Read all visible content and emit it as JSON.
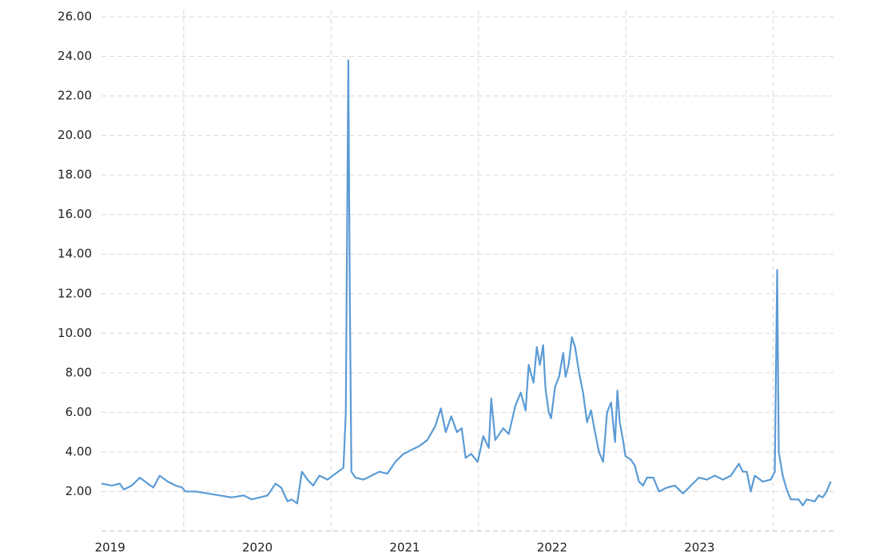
{
  "chart_data": {
    "type": "line",
    "x": [
      2019.442,
      2019.512,
      2019.566,
      2019.593,
      2019.648,
      2019.702,
      2019.756,
      2019.794,
      2019.837,
      2019.892,
      2019.946,
      2019.989,
      2020.011,
      2020.081,
      2020.163,
      2020.244,
      2020.325,
      2020.407,
      2020.461,
      2020.515,
      2020.569,
      2020.623,
      2020.661,
      2020.705,
      2020.732,
      2020.77,
      2020.802,
      2020.84,
      2020.878,
      2020.921,
      2020.976,
      2021.03,
      2021.084,
      2021.1,
      2021.117,
      2021.127,
      2021.138,
      2021.165,
      2021.22,
      2021.274,
      2021.328,
      2021.382,
      2021.436,
      2021.491,
      2021.545,
      2021.599,
      2021.653,
      2021.707,
      2021.745,
      2021.778,
      2021.816,
      2021.854,
      2021.886,
      2021.913,
      2021.951,
      2021.995,
      2022.033,
      2022.07,
      2022.087,
      2022.114,
      2022.168,
      2022.206,
      2022.249,
      2022.287,
      2022.32,
      2022.341,
      2022.374,
      2022.396,
      2022.417,
      2022.439,
      2022.455,
      2022.477,
      2022.493,
      2022.52,
      2022.547,
      2022.575,
      2022.591,
      2022.612,
      2022.634,
      2022.656,
      2022.683,
      2022.71,
      2022.737,
      2022.764,
      2022.791,
      2022.818,
      2022.846,
      2022.873,
      2022.9,
      2022.927,
      2022.943,
      2022.959,
      2022.981,
      2022.997,
      2023.035,
      2023.062,
      2023.089,
      2023.117,
      2023.144,
      2023.187,
      2023.225,
      2023.279,
      2023.333,
      2023.388,
      2023.442,
      2023.496,
      2023.55,
      2023.604,
      2023.659,
      2023.713,
      2023.767,
      2023.794,
      2023.821,
      2023.848,
      2023.875,
      2023.93,
      2023.984,
      2024.011,
      2024.027,
      2024.038,
      2024.065,
      2024.092,
      2024.119,
      2024.173,
      2024.201,
      2024.228,
      2024.282,
      2024.309,
      2024.336,
      2024.363,
      2024.39
    ],
    "series": [
      {
        "color": "#5b9bd5",
        "values": [
          2.4,
          2.3,
          2.4,
          2.1,
          2.3,
          2.7,
          2.4,
          2.2,
          2.8,
          2.5,
          2.3,
          2.2,
          2.0,
          2.0,
          1.9,
          1.8,
          1.7,
          1.8,
          1.6,
          1.7,
          1.8,
          2.4,
          2.2,
          1.5,
          1.6,
          1.4,
          3.0,
          2.6,
          2.3,
          2.8,
          2.6,
          2.9,
          3.2,
          6.0,
          23.8,
          12,
          3.0,
          2.7,
          2.6,
          2.8,
          3.0,
          2.9,
          3.5,
          3.9,
          4.1,
          4.3,
          4.6,
          5.3,
          6.2,
          5.0,
          5.8,
          5.0,
          5.2,
          3.7,
          3.9,
          3.5,
          4.8,
          4.2,
          6.7,
          4.6,
          5.2,
          4.9,
          6.3,
          7.0,
          6.1,
          8.4,
          7.5,
          9.3,
          8.4,
          9.4,
          7.2,
          6.0,
          5.7,
          7.3,
          7.8,
          9.0,
          7.8,
          8.4,
          9.8,
          9.3,
          8.0,
          7.0,
          5.5,
          6.1,
          5.0,
          4.0,
          3.5,
          6.0,
          6.5,
          4.5,
          7.1,
          5.5,
          4.6,
          3.8,
          3.6,
          3.3,
          2.5,
          2.3,
          2.7,
          2.7,
          2.0,
          2.2,
          2.3,
          1.9,
          2.3,
          2.7,
          2.6,
          2.8,
          2.6,
          2.8,
          3.4,
          3.0,
          3.0,
          2.0,
          2.8,
          2.5,
          2.6,
          3.0,
          13.2,
          4.0,
          2.8,
          2.1,
          1.6,
          1.6,
          1.3,
          1.6,
          1.5,
          1.8,
          1.7,
          2.0,
          2.5
        ]
      }
    ],
    "xlim": [
      2019.442,
      2024.42
    ],
    "xticks": [
      {
        "value": 2019.5,
        "label": "2019"
      },
      {
        "value": 2020.5,
        "label": "2020"
      },
      {
        "value": 2021.5,
        "label": "2021"
      },
      {
        "value": 2022.5,
        "label": "2022"
      },
      {
        "value": 2023.5,
        "label": "2023"
      }
    ],
    "xgrid": [
      2020,
      2021,
      2022,
      2023,
      2024
    ],
    "ylim": [
      0,
      26
    ],
    "yticks": [
      {
        "value": 2,
        "label": "2.00"
      },
      {
        "value": 4,
        "label": "4.00"
      },
      {
        "value": 6,
        "label": "6.00"
      },
      {
        "value": 8,
        "label": "8.00"
      },
      {
        "value": 10,
        "label": "10.00"
      },
      {
        "value": 12,
        "label": "12.00"
      },
      {
        "value": 14,
        "label": "14.00"
      },
      {
        "value": 16,
        "label": "16.00"
      },
      {
        "value": 18,
        "label": "18.00"
      },
      {
        "value": 20,
        "label": "20.00"
      },
      {
        "value": 22,
        "label": "22.00"
      },
      {
        "value": 24,
        "label": "24.00"
      },
      {
        "value": 26,
        "label": "26.00"
      }
    ],
    "grid": true
  }
}
